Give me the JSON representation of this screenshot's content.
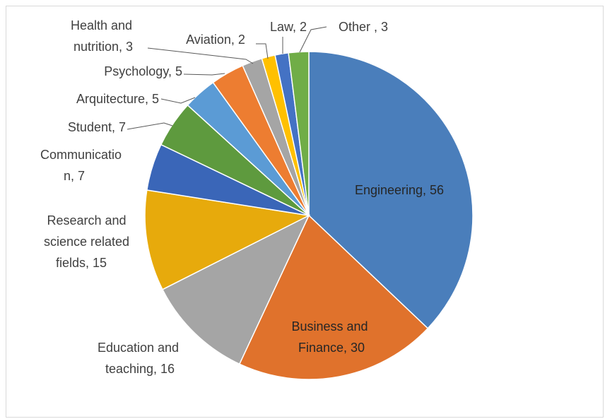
{
  "chart_data": {
    "type": "pie",
    "title": "",
    "start_angle_deg": 0,
    "direction": "clockwise",
    "slices": [
      {
        "label": "Engineering",
        "value": 56,
        "text": "Engineering, 56",
        "color": "#4a7ebb"
      },
      {
        "label": "Business and Finance",
        "value": 30,
        "text": "Business and Finance, 30",
        "color": "#e0722c"
      },
      {
        "label": "Education and teaching",
        "value": 16,
        "text": "Education and teaching, 16",
        "color": "#a5a5a5"
      },
      {
        "label": "Research and science related fields",
        "value": 15,
        "text": "Research and science related fields, 15",
        "color": "#e7aa0c"
      },
      {
        "label": "Communication",
        "value": 7,
        "text": "Communication, 7",
        "color": "#3a66b8"
      },
      {
        "label": "Student",
        "value": 7,
        "text": "Student, 7",
        "color": "#5e9a3e"
      },
      {
        "label": "Arquitecture",
        "value": 5,
        "text": "Arquitecture, 5",
        "color": "#5b9bd5"
      },
      {
        "label": "Psychology",
        "value": 5,
        "text": "Psychology, 5",
        "color": "#ed7d31"
      },
      {
        "label": "Health and nutrition",
        "value": 3,
        "text": "Health and nutrition, 3",
        "color": "#a5a5a5"
      },
      {
        "label": "Aviation",
        "value": 2,
        "text": "Aviation, 2",
        "color": "#ffc000"
      },
      {
        "label": "Law",
        "value": 2,
        "text": "Law, 2",
        "color": "#4472c4"
      },
      {
        "label": "Other",
        "value": 3,
        "text": "Other , 3",
        "color": "#70ad47"
      }
    ]
  },
  "labels": {
    "engineering": "Engineering, 56",
    "business": [
      "Business and",
      "Finance, 30"
    ],
    "education": [
      "Education and",
      "teaching, 16"
    ],
    "research": [
      "Research and",
      "science related",
      "fields, 15"
    ],
    "communication": [
      "Communicatio",
      "n, 7"
    ],
    "student": "Student, 7",
    "arquitecture": "Arquitecture, 5",
    "psychology": "Psychology, 5",
    "health": [
      "Health and",
      "nutrition, 3"
    ],
    "aviation": "Aviation, 2",
    "law": "Law, 2",
    "other": "Other , 3"
  }
}
